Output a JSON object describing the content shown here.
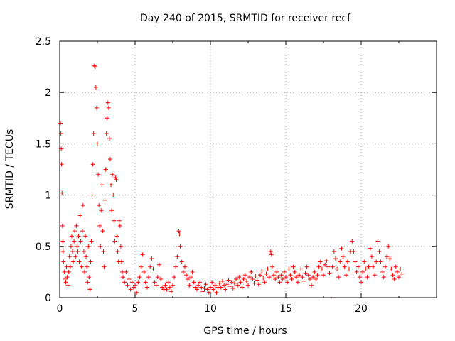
{
  "chart_data": {
    "type": "scatter",
    "title": "Day 240 of 2015, SRMTID for receiver recf",
    "xlabel": "GPS time / hours",
    "ylabel": "SRMTID / TECUs",
    "xlim": [
      0,
      25
    ],
    "ylim": [
      0,
      2.5
    ],
    "x_ticks": [
      0,
      5,
      10,
      15,
      20
    ],
    "x_tick_labels": [
      "0",
      "5",
      "10",
      "15",
      "20"
    ],
    "y_ticks": [
      0,
      0.5,
      1,
      1.5,
      2,
      2.5
    ],
    "y_tick_labels": [
      "0",
      "0.5",
      "1",
      "1.5",
      "2",
      "2.5"
    ],
    "grid": true,
    "marker": "+",
    "series": [
      {
        "name": "SRMTID",
        "color": "#ff0000",
        "points": [
          [
            0.05,
            1.7
          ],
          [
            0.08,
            1.6
          ],
          [
            0.1,
            1.45
          ],
          [
            0.12,
            1.3
          ],
          [
            0.15,
            1.02
          ],
          [
            0.18,
            0.7
          ],
          [
            0.2,
            0.55
          ],
          [
            0.22,
            0.45
          ],
          [
            0.25,
            0.35
          ],
          [
            0.3,
            0.25
          ],
          [
            0.35,
            0.18
          ],
          [
            0.4,
            0.15
          ],
          [
            0.45,
            0.3
          ],
          [
            0.5,
            0.2
          ],
          [
            0.55,
            0.12
          ],
          [
            0.6,
            0.25
          ],
          [
            0.65,
            0.4
          ],
          [
            0.7,
            0.3
          ],
          [
            0.75,
            0.5
          ],
          [
            0.8,
            0.6
          ],
          [
            0.85,
            0.45
          ],
          [
            0.9,
            0.35
          ],
          [
            0.95,
            0.55
          ],
          [
            1.0,
            0.65
          ],
          [
            1.05,
            0.4
          ],
          [
            1.1,
            0.7
          ],
          [
            1.15,
            0.5
          ],
          [
            1.2,
            0.45
          ],
          [
            1.25,
            0.6
          ],
          [
            1.3,
            0.35
          ],
          [
            1.35,
            0.8
          ],
          [
            1.4,
            0.55
          ],
          [
            1.45,
            0.3
          ],
          [
            1.5,
            0.65
          ],
          [
            1.55,
            0.9
          ],
          [
            1.6,
            0.45
          ],
          [
            1.65,
            0.25
          ],
          [
            1.7,
            0.6
          ],
          [
            1.75,
            0.4
          ],
          [
            1.8,
            0.3
          ],
          [
            1.85,
            0.15
          ],
          [
            1.9,
            0.5
          ],
          [
            1.95,
            0.2
          ],
          [
            2.0,
            0.08
          ],
          [
            2.05,
            0.35
          ],
          [
            2.1,
            0.55
          ],
          [
            2.15,
            1.0
          ],
          [
            2.2,
            1.3
          ],
          [
            2.25,
            1.6
          ],
          [
            2.3,
            2.26
          ],
          [
            2.35,
            2.25
          ],
          [
            2.4,
            2.05
          ],
          [
            2.45,
            1.85
          ],
          [
            2.5,
            1.5
          ],
          [
            2.55,
            1.2
          ],
          [
            2.6,
            0.9
          ],
          [
            2.65,
            0.7
          ],
          [
            2.7,
            0.5
          ],
          [
            2.75,
            0.85
          ],
          [
            2.8,
            1.1
          ],
          [
            2.85,
            0.65
          ],
          [
            2.9,
            0.45
          ],
          [
            2.95,
            0.3
          ],
          [
            3.0,
            0.95
          ],
          [
            3.05,
            1.25
          ],
          [
            3.1,
            1.6
          ],
          [
            3.15,
            1.75
          ],
          [
            3.2,
            1.9
          ],
          [
            3.25,
            1.85
          ],
          [
            3.3,
            1.55
          ],
          [
            3.35,
            1.35
          ],
          [
            3.4,
            1.1
          ],
          [
            3.45,
            0.85
          ],
          [
            3.5,
            1.2
          ],
          [
            3.55,
            1.0
          ],
          [
            3.6,
            0.75
          ],
          [
            3.65,
            0.55
          ],
          [
            3.7,
            1.17
          ],
          [
            3.75,
            1.15
          ],
          [
            3.8,
            0.6
          ],
          [
            3.85,
            0.45
          ],
          [
            3.9,
            0.35
          ],
          [
            3.95,
            0.75
          ],
          [
            4.0,
            0.7
          ],
          [
            4.05,
            0.5
          ],
          [
            4.1,
            0.35
          ],
          [
            4.15,
            0.25
          ],
          [
            4.2,
            0.2
          ],
          [
            4.3,
            0.15
          ],
          [
            4.4,
            0.25
          ],
          [
            4.5,
            0.12
          ],
          [
            4.6,
            0.18
          ],
          [
            4.7,
            0.08
          ],
          [
            4.8,
            0.15
          ],
          [
            4.9,
            0.1
          ],
          [
            5.0,
            0.12
          ],
          [
            5.1,
            0.05
          ],
          [
            5.2,
            0.15
          ],
          [
            5.3,
            0.2
          ],
          [
            5.4,
            0.3
          ],
          [
            5.5,
            0.42
          ],
          [
            5.6,
            0.25
          ],
          [
            5.7,
            0.15
          ],
          [
            5.8,
            0.1
          ],
          [
            5.9,
            0.2
          ],
          [
            6.0,
            0.3
          ],
          [
            6.1,
            0.38
          ],
          [
            6.2,
            0.28
          ],
          [
            6.3,
            0.15
          ],
          [
            6.4,
            0.12
          ],
          [
            6.5,
            0.2
          ],
          [
            6.6,
            0.32
          ],
          [
            6.7,
            0.18
          ],
          [
            6.8,
            0.1
          ],
          [
            6.9,
            0.08
          ],
          [
            7.0,
            0.12
          ],
          [
            7.1,
            0.08
          ],
          [
            7.2,
            0.15
          ],
          [
            7.3,
            0.1
          ],
          [
            7.4,
            0.06
          ],
          [
            7.5,
            0.12
          ],
          [
            7.6,
            0.2
          ],
          [
            7.7,
            0.3
          ],
          [
            7.8,
            0.4
          ],
          [
            7.9,
            0.65
          ],
          [
            7.95,
            0.62
          ],
          [
            8.0,
            0.5
          ],
          [
            8.1,
            0.35
          ],
          [
            8.2,
            0.25
          ],
          [
            8.3,
            0.3
          ],
          [
            8.4,
            0.22
          ],
          [
            8.5,
            0.18
          ],
          [
            8.6,
            0.12
          ],
          [
            8.7,
            0.2
          ],
          [
            8.8,
            0.25
          ],
          [
            8.9,
            0.15
          ],
          [
            9.0,
            0.1
          ],
          [
            9.1,
            0.08
          ],
          [
            9.2,
            0.12
          ],
          [
            9.3,
            0.15
          ],
          [
            9.4,
            0.1
          ],
          [
            9.5,
            0.06
          ],
          [
            9.6,
            0.09
          ],
          [
            9.7,
            0.13
          ],
          [
            9.8,
            0.08
          ],
          [
            9.9,
            0.05
          ],
          [
            10.0,
            0.1
          ],
          [
            10.1,
            0.15
          ],
          [
            10.2,
            0.08
          ],
          [
            10.3,
            0.12
          ],
          [
            10.4,
            0.05
          ],
          [
            10.5,
            0.1
          ],
          [
            10.6,
            0.14
          ],
          [
            10.7,
            0.1
          ],
          [
            10.8,
            0.16
          ],
          [
            10.9,
            0.12
          ],
          [
            11.0,
            0.08
          ],
          [
            11.1,
            0.13
          ],
          [
            11.2,
            0.17
          ],
          [
            11.3,
            0.11
          ],
          [
            11.4,
            0.15
          ],
          [
            11.5,
            0.09
          ],
          [
            11.6,
            0.14
          ],
          [
            11.7,
            0.18
          ],
          [
            11.8,
            0.12
          ],
          [
            11.9,
            0.2
          ],
          [
            12.0,
            0.15
          ],
          [
            12.1,
            0.1
          ],
          [
            12.2,
            0.18
          ],
          [
            12.3,
            0.22
          ],
          [
            12.4,
            0.16
          ],
          [
            12.5,
            0.12
          ],
          [
            12.6,
            0.2
          ],
          [
            12.7,
            0.25
          ],
          [
            12.8,
            0.18
          ],
          [
            12.9,
            0.14
          ],
          [
            13.0,
            0.21
          ],
          [
            13.1,
            0.17
          ],
          [
            13.2,
            0.13
          ],
          [
            13.3,
            0.22
          ],
          [
            13.4,
            0.26
          ],
          [
            13.5,
            0.19
          ],
          [
            13.6,
            0.15
          ],
          [
            13.7,
            0.23
          ],
          [
            13.8,
            0.28
          ],
          [
            13.9,
            0.2
          ],
          [
            14.0,
            0.45
          ],
          [
            14.05,
            0.42
          ],
          [
            14.1,
            0.3
          ],
          [
            14.2,
            0.22
          ],
          [
            14.3,
            0.18
          ],
          [
            14.4,
            0.25
          ],
          [
            14.5,
            0.2
          ],
          [
            14.6,
            0.15
          ],
          [
            14.7,
            0.22
          ],
          [
            14.8,
            0.18
          ],
          [
            14.9,
            0.25
          ],
          [
            15.0,
            0.2
          ],
          [
            15.1,
            0.15
          ],
          [
            15.2,
            0.28
          ],
          [
            15.3,
            0.22
          ],
          [
            15.4,
            0.18
          ],
          [
            15.5,
            0.3
          ],
          [
            15.6,
            0.25
          ],
          [
            15.7,
            0.2
          ],
          [
            15.8,
            0.15
          ],
          [
            15.9,
            0.22
          ],
          [
            16.0,
            0.28
          ],
          [
            16.1,
            0.2
          ],
          [
            16.2,
            0.16
          ],
          [
            16.3,
            0.24
          ],
          [
            16.4,
            0.3
          ],
          [
            16.5,
            0.22
          ],
          [
            16.6,
            0.18
          ],
          [
            16.7,
            0.12
          ],
          [
            16.8,
            0.2
          ],
          [
            16.9,
            0.25
          ],
          [
            17.0,
            0.18
          ],
          [
            17.1,
            0.22
          ],
          [
            17.2,
            0.3
          ],
          [
            17.3,
            0.35
          ],
          [
            17.4,
            0.28
          ],
          [
            17.5,
            0.22
          ],
          [
            17.6,
            0.32
          ],
          [
            17.7,
            0.36
          ],
          [
            17.8,
            0.3
          ],
          [
            17.9,
            0.24
          ],
          [
            18.0,
            0.0
          ],
          [
            18.1,
            0.3
          ],
          [
            18.2,
            0.45
          ],
          [
            18.3,
            0.38
          ],
          [
            18.4,
            0.28
          ],
          [
            18.5,
            0.2
          ],
          [
            18.6,
            0.35
          ],
          [
            18.7,
            0.48
          ],
          [
            18.8,
            0.4
          ],
          [
            18.9,
            0.3
          ],
          [
            19.0,
            0.22
          ],
          [
            19.1,
            0.35
          ],
          [
            19.2,
            0.28
          ],
          [
            19.3,
            0.45
          ],
          [
            19.4,
            0.55
          ],
          [
            19.5,
            0.45
          ],
          [
            19.6,
            0.35
          ],
          [
            19.7,
            0.25
          ],
          [
            19.8,
            0.3
          ],
          [
            19.9,
            0.2
          ],
          [
            20.0,
            0.15
          ],
          [
            20.1,
            0.25
          ],
          [
            20.2,
            0.35
          ],
          [
            20.3,
            0.28
          ],
          [
            20.4,
            0.2
          ],
          [
            20.5,
            0.3
          ],
          [
            20.6,
            0.48
          ],
          [
            20.7,
            0.4
          ],
          [
            20.8,
            0.3
          ],
          [
            20.9,
            0.22
          ],
          [
            21.0,
            0.35
          ],
          [
            21.1,
            0.55
          ],
          [
            21.2,
            0.45
          ],
          [
            21.3,
            0.35
          ],
          [
            21.4,
            0.25
          ],
          [
            21.5,
            0.2
          ],
          [
            21.6,
            0.3
          ],
          [
            21.7,
            0.4
          ],
          [
            21.8,
            0.5
          ],
          [
            21.9,
            0.38
          ],
          [
            22.0,
            0.28
          ],
          [
            22.1,
            0.22
          ],
          [
            22.2,
            0.18
          ],
          [
            22.3,
            0.3
          ],
          [
            22.4,
            0.25
          ],
          [
            22.5,
            0.2
          ],
          [
            22.6,
            0.28
          ],
          [
            22.7,
            0.23
          ]
        ]
      }
    ]
  }
}
